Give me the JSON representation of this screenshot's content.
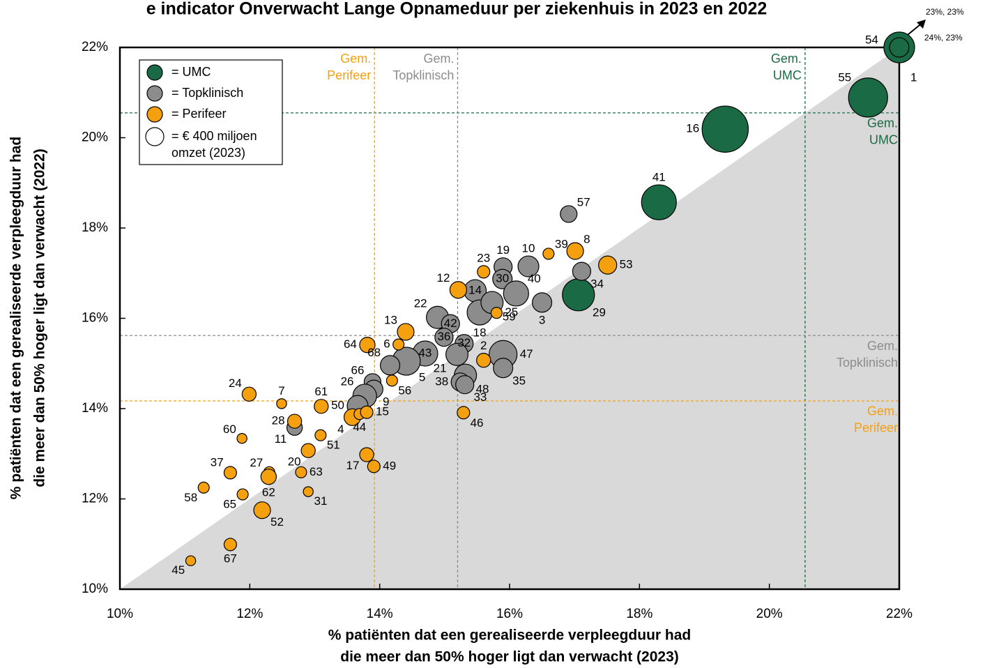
{
  "chart_data": {
    "type": "bubble",
    "title": "e indicator Onverwacht Lange Opnameduur per ziekenhuis in 2023 en 2022",
    "x_label": [
      "% patiënten dat een gerealiseerde verpleegduur had",
      "die meer dan 50% hoger ligt dan verwacht (2023)"
    ],
    "y_label": [
      "% patiënten dat een gerealiseerde verpleegduur had",
      "die meer dan 50% hoger ligt dan verwacht (2022)"
    ],
    "xlim": [
      10,
      22
    ],
    "ylim": [
      10,
      22
    ],
    "xticks": [
      {
        "value": 10,
        "label": "10%"
      },
      {
        "value": 12,
        "label": "12%"
      },
      {
        "value": 14,
        "label": "14%"
      },
      {
        "value": 16,
        "label": "16%"
      },
      {
        "value": 18,
        "label": "18%"
      },
      {
        "value": 20,
        "label": "20%"
      },
      {
        "value": 22,
        "label": "22%"
      }
    ],
    "yticks": [
      {
        "value": 10,
        "label": "10%"
      },
      {
        "value": 12,
        "label": "12%"
      },
      {
        "value": 14,
        "label": "14%"
      },
      {
        "value": 16,
        "label": "16%"
      },
      {
        "value": 18,
        "label": "18%"
      },
      {
        "value": 20,
        "label": "20%"
      },
      {
        "value": 22,
        "label": "22%"
      }
    ],
    "diagonal_fill": "#d9d9d9",
    "size_legend": {
      "value": 400,
      "label": [
        "= € 400 miljoen",
        "omzet (2023)"
      ]
    },
    "series": [
      {
        "name": "= UMC",
        "color": "#1a6b45",
        "labels": [
          "16",
          "41",
          "55",
          "29"
        ],
        "x": [
          19.32,
          18.3,
          21.52,
          17.06
        ],
        "y": [
          20.19,
          18.57,
          20.89,
          16.52
        ],
        "size": [
          2600,
          1480,
          1860,
          1250
        ]
      },
      {
        "name": "= Topklinisch",
        "color": "#8c8c8c",
        "labels": [
          "57",
          "19",
          "10",
          "30",
          "40",
          "34",
          "3",
          "14",
          "18",
          "59",
          "22",
          "42",
          "36",
          "32",
          "21",
          "43",
          "5",
          "47",
          "35",
          "48",
          "38",
          "33",
          "68",
          "66",
          "9",
          "26",
          "50",
          "11"
        ],
        "x": [
          16.91,
          15.9,
          16.29,
          15.89,
          16.1,
          17.11,
          16.5,
          15.47,
          15.54,
          15.73,
          14.89,
          15.09,
          14.99,
          15.3,
          15.19,
          14.7,
          14.41,
          15.9,
          15.9,
          15.32,
          15.24,
          15.31,
          14.16,
          13.89,
          13.91,
          13.77,
          13.66,
          12.69
        ],
        "y": [
          18.31,
          17.14,
          17.15,
          16.87,
          16.55,
          17.04,
          16.35,
          16.61,
          16.13,
          16.35,
          16.02,
          15.88,
          15.58,
          15.44,
          15.2,
          15.22,
          15.05,
          15.2,
          14.9,
          14.74,
          14.59,
          14.53,
          14.96,
          14.59,
          14.43,
          14.28,
          14.06,
          13.58
        ],
        "size": [
          340,
          400,
          530,
          460,
          770,
          400,
          460,
          600,
          770,
          600,
          600,
          400,
          400,
          400,
          600,
          770,
          950,
          950,
          460,
          600,
          400,
          400,
          460,
          340,
          400,
          680,
          530,
          290
        ]
      },
      {
        "name": "= Perifeer",
        "color": "#f5a00f",
        "labels": [
          "64",
          "6",
          "13",
          "12",
          "23",
          "39",
          "8",
          "53",
          "25",
          "2",
          "56",
          "46",
          "24",
          "7",
          "61",
          "28",
          "4",
          "44",
          "15",
          "60",
          "51",
          "20",
          "17",
          "49",
          "37",
          "27",
          "62",
          "63",
          "58",
          "65",
          "31",
          "52",
          "67",
          "45"
        ],
        "x": [
          13.81,
          14.29,
          14.4,
          15.21,
          15.6,
          16.6,
          17.01,
          17.51,
          15.8,
          15.6,
          14.19,
          15.29,
          11.99,
          12.49,
          13.1,
          12.69,
          13.58,
          13.69,
          13.8,
          11.88,
          13.09,
          12.9,
          13.8,
          13.91,
          11.7,
          12.3,
          12.29,
          12.79,
          11.29,
          11.89,
          12.9,
          12.19,
          11.7,
          11.09
        ],
        "y": [
          15.41,
          15.42,
          15.7,
          16.63,
          17.03,
          17.43,
          17.49,
          17.18,
          16.12,
          15.07,
          14.62,
          13.91,
          14.32,
          14.11,
          14.05,
          13.72,
          13.81,
          13.88,
          13.92,
          13.34,
          13.41,
          13.07,
          12.98,
          12.72,
          12.58,
          12.59,
          12.49,
          12.59,
          12.25,
          12.1,
          12.16,
          11.75,
          10.99,
          10.63
        ],
        "size": [
          290,
          150,
          340,
          340,
          190,
          150,
          340,
          400,
          150,
          240,
          150,
          190,
          240,
          120,
          240,
          240,
          340,
          150,
          190,
          120,
          150,
          240,
          240,
          190,
          190,
          150,
          290,
          150,
          150,
          150,
          120,
          340,
          190,
          120
        ]
      }
    ],
    "outliers": [
      {
        "label": "54",
        "size": 1150,
        "text": "23%, 23%"
      },
      {
        "label": "1",
        "size": 460,
        "text": "24%, 23%"
      }
    ],
    "averages": [
      {
        "label": [
          "Gem.",
          "UMC"
        ],
        "color": "#1a6b45",
        "x": 20.55,
        "y": 20.55
      },
      {
        "label": [
          "Gem.",
          "Topklinisch"
        ],
        "color": "#8c8c8c",
        "x": 15.2,
        "y": 15.62
      },
      {
        "label": [
          "Gem.",
          "Perifeer"
        ],
        "color": "#f5a00f",
        "x": 13.92,
        "y": 14.17
      }
    ]
  }
}
